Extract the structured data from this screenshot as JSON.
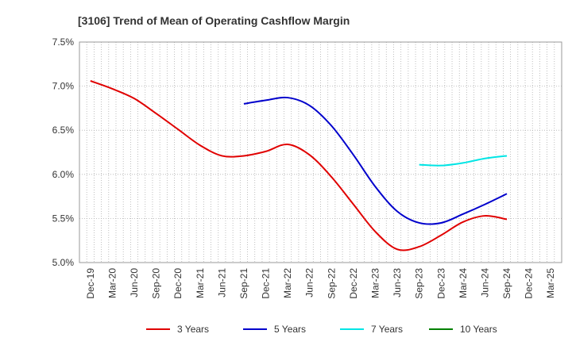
{
  "chart_data": {
    "type": "line",
    "title": "[3106]  Trend of Mean of Operating Cashflow Margin",
    "xlabel": "",
    "ylabel": "",
    "x_ticks": [
      "Dec-19",
      "Mar-20",
      "Jun-20",
      "Sep-20",
      "Dec-20",
      "Mar-21",
      "Jun-21",
      "Sep-21",
      "Dec-21",
      "Mar-22",
      "Jun-22",
      "Sep-22",
      "Dec-22",
      "Mar-23",
      "Jun-23",
      "Sep-23",
      "Dec-23",
      "Mar-24",
      "Jun-24",
      "Sep-24",
      "Dec-24",
      "Mar-25"
    ],
    "y_ticks": [
      "5.0%",
      "5.5%",
      "6.0%",
      "6.5%",
      "7.0%",
      "7.5%"
    ],
    "ylim": [
      5.0,
      7.5
    ],
    "grid": true,
    "legend_position": "bottom",
    "series": [
      {
        "name": "3 Years",
        "color": "#e00000",
        "values": [
          7.06,
          6.97,
          6.86,
          6.69,
          6.51,
          6.33,
          6.21,
          6.21,
          6.26,
          6.34,
          6.22,
          5.97,
          5.66,
          5.35,
          5.15,
          5.18,
          5.31,
          5.46,
          5.53,
          5.49,
          null,
          null
        ]
      },
      {
        "name": "5 Years",
        "color": "#0000cc",
        "values": [
          null,
          null,
          null,
          null,
          null,
          null,
          null,
          6.8,
          6.84,
          6.87,
          6.78,
          6.55,
          6.22,
          5.86,
          5.58,
          5.45,
          5.45,
          5.55,
          5.66,
          5.78,
          null,
          null
        ]
      },
      {
        "name": "7 Years",
        "color": "#00e5e5",
        "values": [
          null,
          null,
          null,
          null,
          null,
          null,
          null,
          null,
          null,
          null,
          null,
          null,
          null,
          null,
          null,
          6.11,
          6.1,
          6.13,
          6.18,
          6.21,
          null,
          null
        ]
      },
      {
        "name": "10 Years",
        "color": "#008000",
        "values": [
          null,
          null,
          null,
          null,
          null,
          null,
          null,
          null,
          null,
          null,
          null,
          null,
          null,
          null,
          null,
          null,
          null,
          null,
          null,
          null,
          null,
          null
        ]
      }
    ]
  }
}
